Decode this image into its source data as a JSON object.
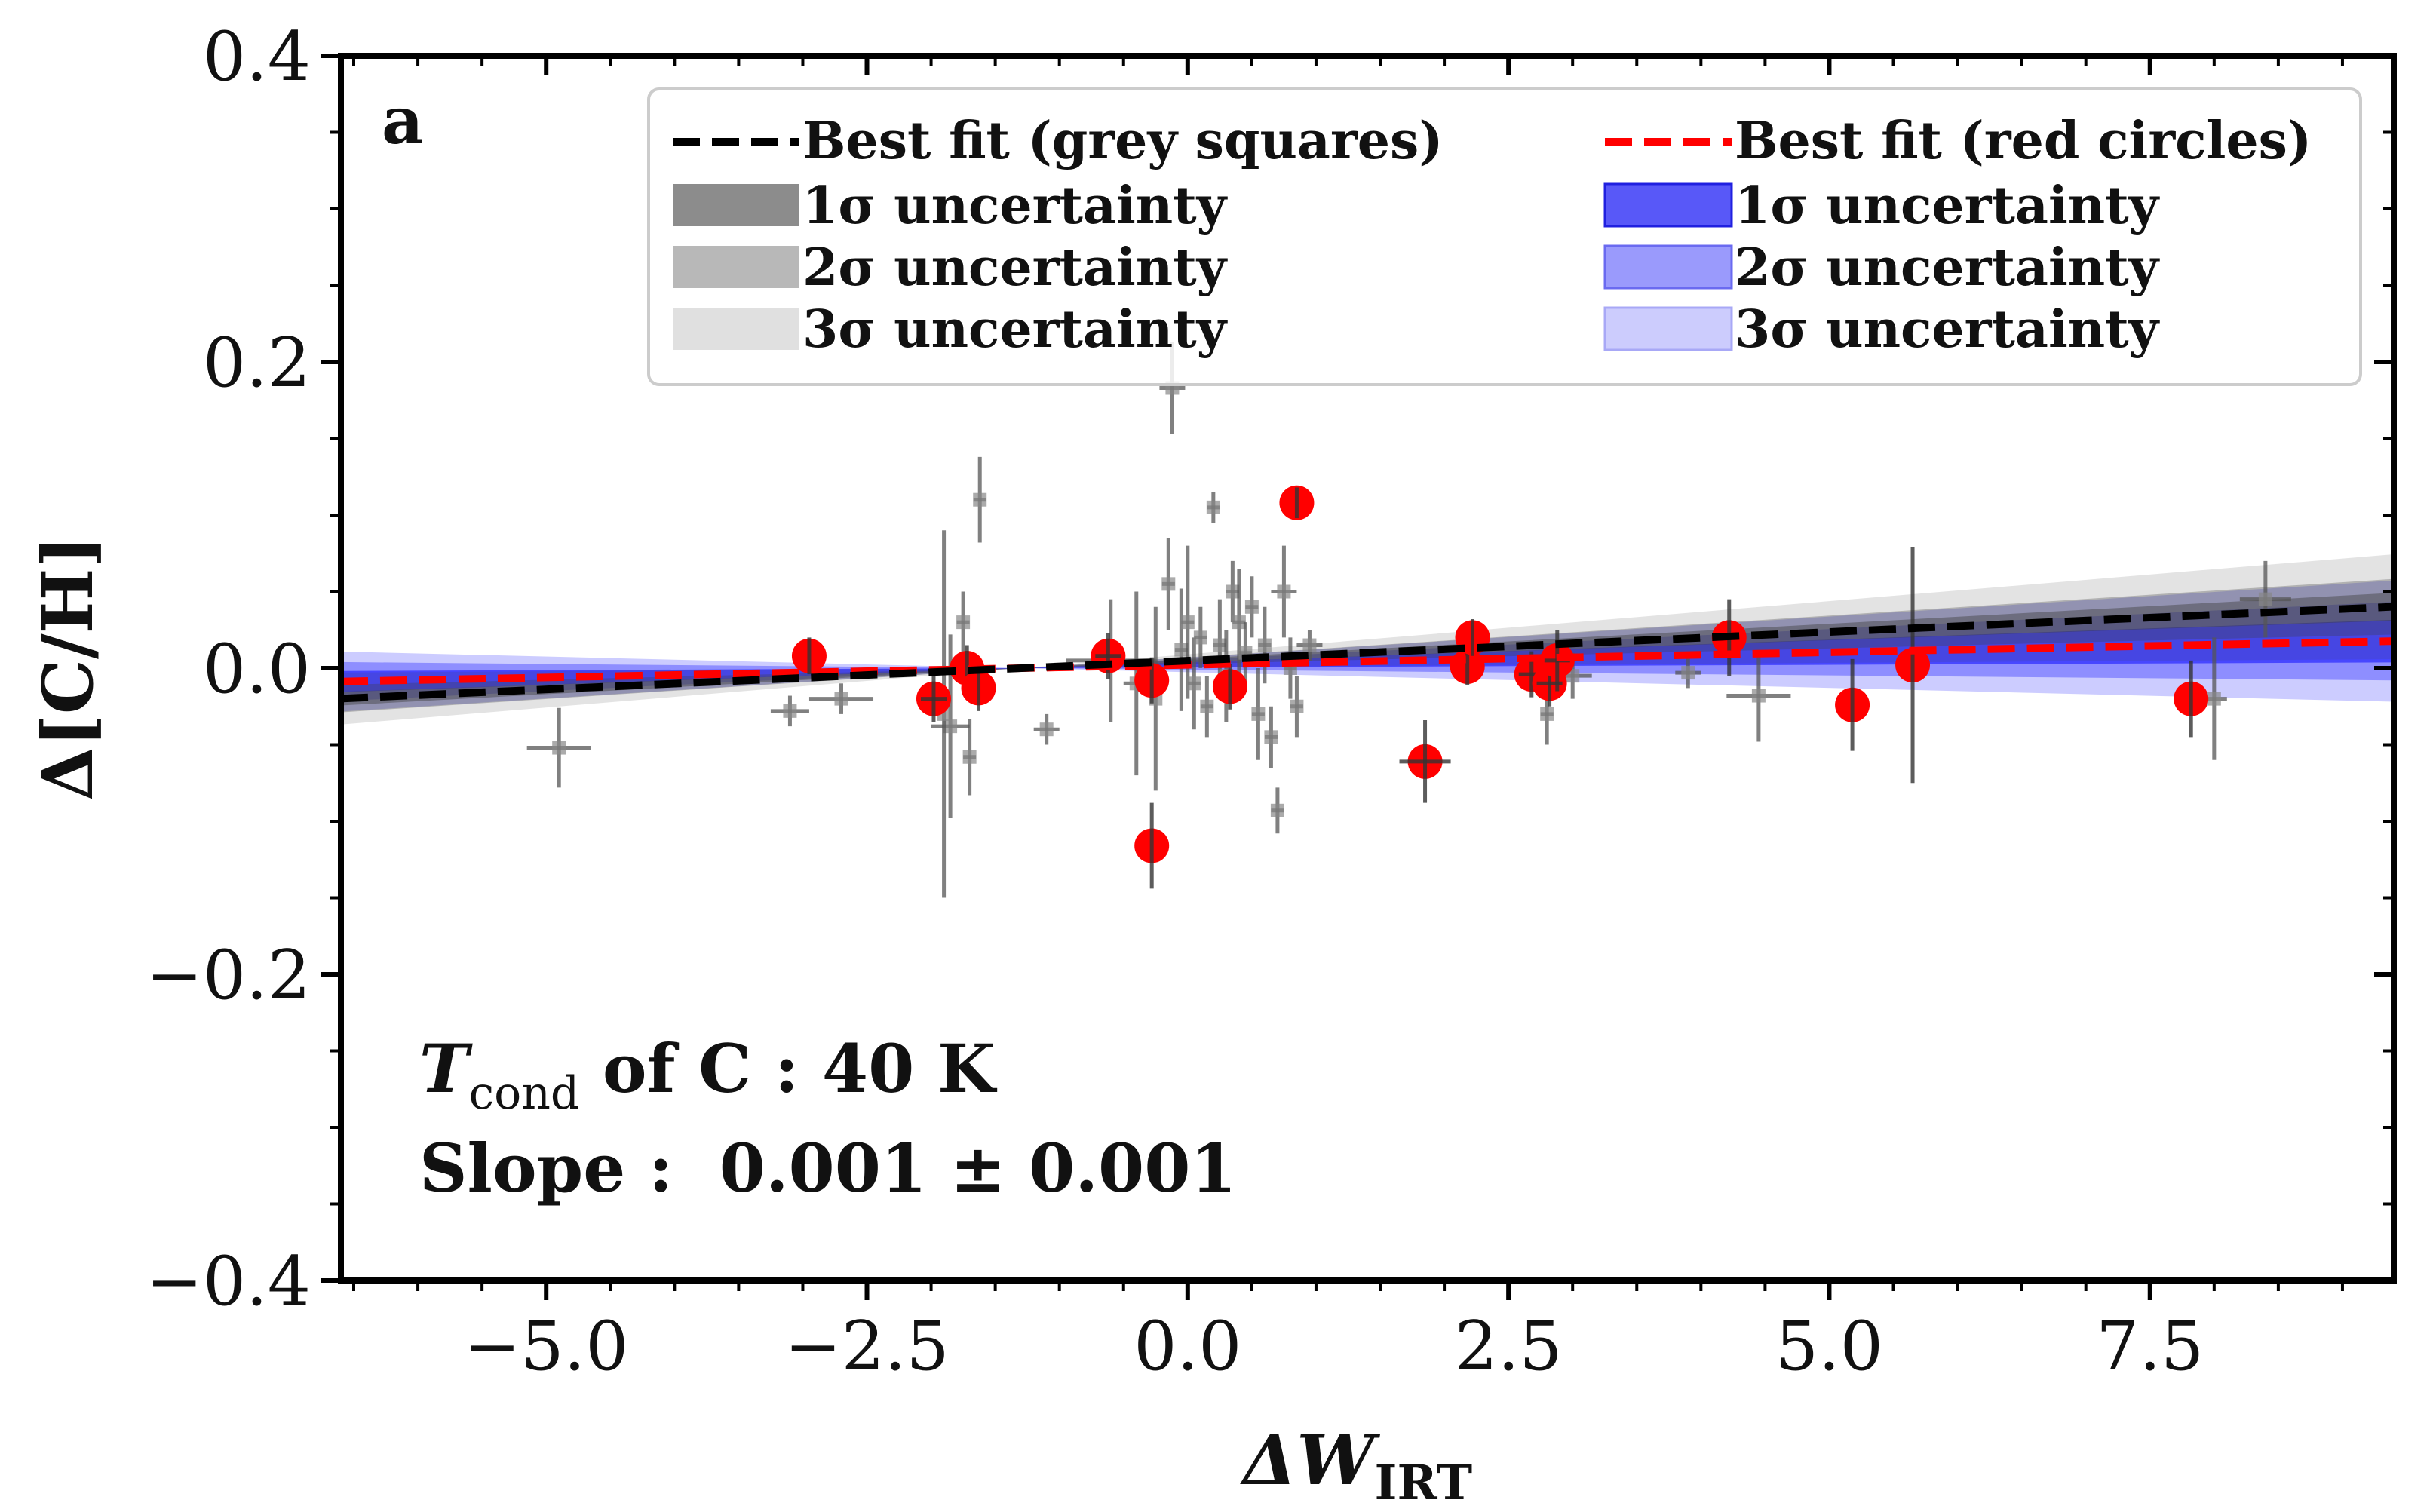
{
  "chart_data": {
    "type": "scatter",
    "panel_label": "a",
    "xlabel": "ΔW",
    "xlabel_sub": "IRT",
    "ylabel": "Δ[C/H]",
    "xlim": [
      -6.6,
      9.4
    ],
    "ylim": [
      -0.4,
      0.4
    ],
    "x_ticks": [
      -5.0,
      -2.5,
      0.0,
      2.5,
      5.0,
      7.5
    ],
    "x_tick_labels": [
      "−5.0",
      "−2.5",
      "0.0",
      "2.5",
      "5.0",
      "7.5"
    ],
    "y_ticks": [
      -0.4,
      -0.2,
      0.0,
      0.2,
      0.4
    ],
    "y_tick_labels": [
      "−0.4",
      "−0.2",
      "0.0",
      "0.2",
      "0.4"
    ],
    "grid": false,
    "legend_position": "top",
    "legend": {
      "grey_fit": "Best fit (grey squares)",
      "red_fit": "Best fit (red circles)",
      "s1": "1σ uncertainty",
      "s2": "2σ uncertainty",
      "s3": "3σ uncertainty"
    },
    "annotation": {
      "tcond_symbol": "T",
      "tcond_sub": "cond",
      "tcond_rest": " of C : 40 K",
      "slope": "Slope :  0.001 ± 0.001"
    },
    "fits": {
      "grey_squares": {
        "line_color": "#000000",
        "band_color": "#404040",
        "pivot_x": -1.3,
        "slope": 0.00375,
        "band_half_width_per_unit": [
          0.00085,
          0.0017,
          0.0032
        ],
        "band_opacity": [
          0.45,
          0.3,
          0.15
        ]
      },
      "red_circles": {
        "line_color": "#ff0000",
        "band_color": "#0000ff",
        "pivot_x": -1.3,
        "slope": 0.00165,
        "band_half_width_per_unit": [
          0.0013,
          0.0024,
          0.0037
        ],
        "band_opacity": [
          0.5,
          0.3,
          0.2
        ]
      }
    },
    "series": [
      {
        "name": "red circles",
        "marker": "circle",
        "color": "#ff0000",
        "points": [
          {
            "x": -2.95,
            "y": 0.008,
            "ey": 0.012,
            "ex": 0.0
          },
          {
            "x": -1.98,
            "y": -0.02,
            "ey": 0.015,
            "ex": 0.1
          },
          {
            "x": -1.72,
            "y": 0.0,
            "ey": 0.015,
            "ex": 0.0
          },
          {
            "x": -1.63,
            "y": -0.013,
            "ey": 0.015,
            "ex": 0.0
          },
          {
            "x": -0.62,
            "y": 0.008,
            "ey": 0.015,
            "ex": 0.1
          },
          {
            "x": -0.28,
            "y": -0.008,
            "ey": 0.015,
            "ex": 0.0
          },
          {
            "x": -0.28,
            "y": -0.116,
            "ey": 0.028,
            "ex": 0.0
          },
          {
            "x": 0.33,
            "y": -0.012,
            "ey": 0.015,
            "ex": 0.0
          },
          {
            "x": 0.85,
            "y": 0.108,
            "ey": 0.01,
            "ex": 0.0
          },
          {
            "x": 1.85,
            "y": -0.061,
            "ey": 0.027,
            "ex": 0.2
          },
          {
            "x": 2.18,
            "y": 0.001,
            "ey": 0.012,
            "ex": 0.0
          },
          {
            "x": 2.22,
            "y": 0.02,
            "ey": 0.012,
            "ex": 0.0
          },
          {
            "x": 2.68,
            "y": -0.004,
            "ey": 0.015,
            "ex": 0.1
          },
          {
            "x": 2.82,
            "y": -0.01,
            "ey": 0.015,
            "ex": 0.1
          },
          {
            "x": 2.88,
            "y": 0.005,
            "ey": 0.02,
            "ex": 0.1
          },
          {
            "x": 4.22,
            "y": 0.02,
            "ey": 0.025,
            "ex": 0.0
          },
          {
            "x": 5.18,
            "y": -0.024,
            "ey": 0.03,
            "ex": 0.0
          },
          {
            "x": 5.65,
            "y": 0.002,
            "ey": 0.077,
            "ex": 0.0
          },
          {
            "x": 7.82,
            "y": -0.02,
            "ey": 0.025,
            "ex": 0.0
          }
        ]
      },
      {
        "name": "grey squares",
        "marker": "square",
        "color": "#555555",
        "points": [
          {
            "x": -4.9,
            "y": -0.052,
            "ey": 0.026,
            "ex": 0.25
          },
          {
            "x": -3.1,
            "y": -0.028,
            "ey": 0.01,
            "ex": 0.15
          },
          {
            "x": -2.7,
            "y": -0.02,
            "ey": 0.01,
            "ex": 0.25
          },
          {
            "x": -1.85,
            "y": -0.038,
            "ey": 0.06,
            "ex": 0.15
          },
          {
            "x": -1.9,
            "y": -0.03,
            "ey": 0.12,
            "ex": 0.0
          },
          {
            "x": -1.75,
            "y": 0.03,
            "ey": 0.02,
            "ex": 0.05
          },
          {
            "x": -1.7,
            "y": -0.058,
            "ey": 0.025,
            "ex": 0.05
          },
          {
            "x": -1.62,
            "y": 0.11,
            "ey": 0.028,
            "ex": 0.05
          },
          {
            "x": -1.1,
            "y": -0.04,
            "ey": 0.01,
            "ex": 0.1
          },
          {
            "x": -0.6,
            "y": 0.005,
            "ey": 0.04,
            "ex": 0.35
          },
          {
            "x": -0.4,
            "y": -0.01,
            "ey": 0.06,
            "ex": 0.1
          },
          {
            "x": -0.25,
            "y": -0.02,
            "ey": 0.06,
            "ex": 0.0
          },
          {
            "x": -0.15,
            "y": 0.055,
            "ey": 0.03,
            "ex": 0.05
          },
          {
            "x": -0.12,
            "y": 0.183,
            "ey": 0.03,
            "ex": 0.1
          },
          {
            "x": -0.05,
            "y": 0.012,
            "ey": 0.04,
            "ex": 0.05
          },
          {
            "x": 0.0,
            "y": 0.03,
            "ey": 0.05,
            "ex": 0.05
          },
          {
            "x": 0.05,
            "y": -0.01,
            "ey": 0.03,
            "ex": 0.05
          },
          {
            "x": 0.1,
            "y": 0.02,
            "ey": 0.02,
            "ex": 0.05
          },
          {
            "x": 0.15,
            "y": -0.025,
            "ey": 0.02,
            "ex": 0.05
          },
          {
            "x": 0.2,
            "y": 0.105,
            "ey": 0.01,
            "ex": 0.05
          },
          {
            "x": 0.25,
            "y": 0.015,
            "ey": 0.03,
            "ex": 0.05
          },
          {
            "x": 0.3,
            "y": -0.005,
            "ey": 0.03,
            "ex": 0.05
          },
          {
            "x": 0.35,
            "y": 0.05,
            "ey": 0.02,
            "ex": 0.05
          },
          {
            "x": 0.4,
            "y": 0.03,
            "ey": 0.035,
            "ex": 0.05
          },
          {
            "x": 0.45,
            "y": 0.01,
            "ey": 0.02,
            "ex": 0.05
          },
          {
            "x": 0.5,
            "y": 0.04,
            "ey": 0.02,
            "ex": 0.05
          },
          {
            "x": 0.55,
            "y": -0.03,
            "ey": 0.03,
            "ex": 0.05
          },
          {
            "x": 0.6,
            "y": 0.015,
            "ey": 0.025,
            "ex": 0.05
          },
          {
            "x": 0.65,
            "y": -0.045,
            "ey": 0.02,
            "ex": 0.05
          },
          {
            "x": 0.7,
            "y": -0.093,
            "ey": 0.015,
            "ex": 0.05
          },
          {
            "x": 0.75,
            "y": 0.05,
            "ey": 0.03,
            "ex": 0.1
          },
          {
            "x": 0.8,
            "y": 0.0,
            "ey": 0.02,
            "ex": 0.05
          },
          {
            "x": 0.85,
            "y": -0.025,
            "ey": 0.02,
            "ex": 0.05
          },
          {
            "x": 0.95,
            "y": 0.015,
            "ey": 0.01,
            "ex": 0.1
          },
          {
            "x": 2.8,
            "y": -0.03,
            "ey": 0.02,
            "ex": 0.05
          },
          {
            "x": 3.0,
            "y": -0.005,
            "ey": 0.015,
            "ex": 0.15
          },
          {
            "x": 3.9,
            "y": -0.003,
            "ey": 0.01,
            "ex": 0.1
          },
          {
            "x": 4.45,
            "y": -0.018,
            "ey": 0.03,
            "ex": 0.25
          },
          {
            "x": 8.0,
            "y": -0.02,
            "ey": 0.04,
            "ex": 0.1
          },
          {
            "x": 8.4,
            "y": 0.045,
            "ey": 0.025,
            "ex": 0.2
          }
        ]
      }
    ]
  }
}
